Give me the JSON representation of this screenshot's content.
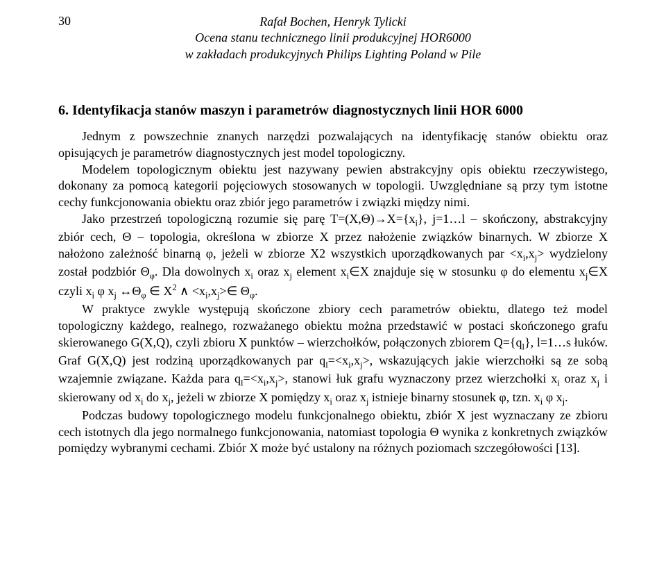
{
  "pageNumber": "30",
  "header": {
    "authors": "Rafał Bochen, Henryk Tylicki",
    "title1": "Ocena stanu technicznego linii produkcyjnej HOR6000",
    "title2": "w zakładach produkcyjnych Philips Lighting Poland w Pile"
  },
  "section": {
    "title": "6. Identyfikacja stanów maszyn i parametrów diagnostycznych linii HOR 6000",
    "para1_part1": "Jednym z powszechnie znanych narzędzi pozwalających na identyfikację stanów obiektu oraz opisujących je parametrów diagnostycznych jest model topologiczny.",
    "para2_part1": "Modelem topologicznym obiektu jest nazywany pewien abstrakcyjny opis obiektu rzeczywistego, dokonany za pomocą kategorii pojęciowych stosowanych w topologii. Uwzględniane są przy tym istotne cechy funkcjonowania obiektu oraz zbiór jego parametrów i związki między nimi.",
    "para3_a": "Jako przestrzeń topologiczną rozumie się parę T=(X,Θ)→X={x",
    "para3_b": "}, j=1…l – skończony, abstrakcyjny zbiór cech, Θ – topologia, określona w zbiorze X przez nałożenie związków binarnych. W zbiorze X nałożono zależność binarną φ, jeżeli w zbiorze X2 wszystkich uporządkowanych par <x",
    "para3_c": ",x",
    "para3_d": "> wydzielony został podzbiór Θ",
    "para3_e": ". Dla dowolnych x",
    "para3_f": " oraz x",
    "para3_g": " element x",
    "para3_h": "∈X znajduje się w stosunku φ do elementu x",
    "para3_i": "∈X czyli x",
    "para3_j": " φ x",
    "para3_k": " ↔Θ",
    "para3_l": " ∈ X",
    "para3_m": " ∧ <x",
    "para3_n": ",x",
    "para3_o": ">∈ Θ",
    "para3_p": ".",
    "para4_a": "W praktyce zwykle występują skończone zbiory cech parametrów obiektu, dlatego też model topologiczny każdego, realnego, rozważanego obiektu można przedstawić w postaci skończonego grafu skierowanego G(X,Q), czyli zbioru X punktów – wierzchołków, połączonych zbiorem Q={q",
    "para4_b": "}, l=1…s łuków. Graf G(X,Q) jest rodziną uporządkowanych par q",
    "para4_c": "=<x",
    "para4_d": ",x",
    "para4_e": ">, wskazujących jakie wierzchołki są ze sobą wzajemnie związane. Każda para q",
    "para4_f": "=<x",
    "para4_g": ",x",
    "para4_h": ">, stanowi łuk grafu wyznaczony przez wierzchołki x",
    "para4_i": " oraz x",
    "para4_j": " i skierowany od x",
    "para4_k": " do x",
    "para4_l": ", jeżeli w zbiorze X pomiędzy x",
    "para4_m": " oraz x",
    "para4_n": " istnieje binarny stosunek φ, tzn. x",
    "para4_o": " φ x",
    "para4_p": ".",
    "para5": "Podczas budowy topologicznego modelu funkcjonalnego obiektu, zbiór X jest wyznaczany ze zbioru cech istotnych dla jego normalnego funkcjonowania, natomiast topologia Θ wynika z konkretnych związków pomiędzy wybranymi cechami. Zbiór X może być ustalony na różnych poziomach szczegółowości [13]."
  },
  "sub": {
    "i": "i",
    "j": "j",
    "l": "l",
    "phi": "φ"
  },
  "sup": {
    "two": "2"
  }
}
